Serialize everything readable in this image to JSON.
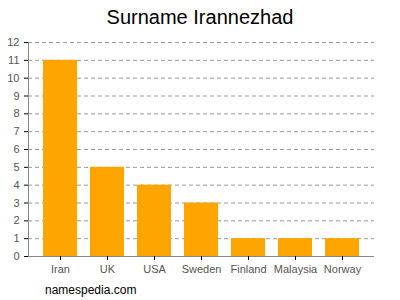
{
  "chart_data": {
    "type": "bar",
    "title": "Surname Irannezhad",
    "caption": "namespedia.com",
    "categories": [
      "Iran",
      "UK",
      "USA",
      "Sweden",
      "Finland",
      "Malaysia",
      "Norway"
    ],
    "values": [
      11,
      5,
      4,
      3,
      1,
      1,
      1
    ],
    "color": "#ffa500",
    "ylim": [
      0,
      12
    ],
    "yticks": [
      0,
      1,
      2,
      3,
      4,
      5,
      6,
      7,
      8,
      9,
      10,
      11,
      12
    ],
    "grid": true
  }
}
